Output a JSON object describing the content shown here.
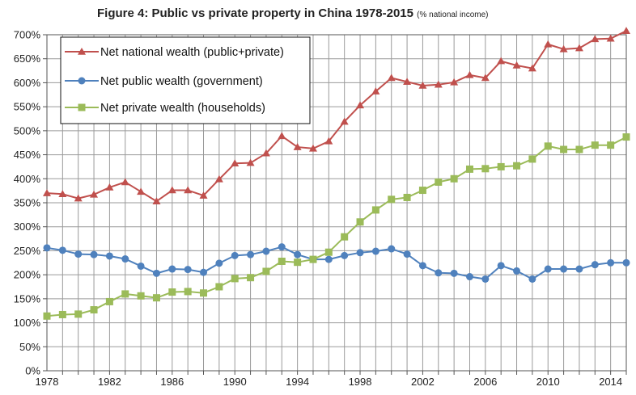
{
  "chart_data": {
    "type": "line",
    "title": "Figure 4: Public vs private property in China 1978-2015",
    "subtitle": "(% national income)",
    "xlabel": "",
    "ylabel": "",
    "xlim": [
      1978,
      2015
    ],
    "ylim": [
      0,
      700
    ],
    "grid": true,
    "legend_position": "top-left",
    "x_ticks": [
      1978,
      1982,
      1986,
      1990,
      1994,
      1998,
      2002,
      2006,
      2010,
      2014
    ],
    "x_tick_labels": [
      "1978",
      "1982",
      "1986",
      "1990",
      "1994",
      "1998",
      "2002",
      "2006",
      "2010",
      "2014"
    ],
    "y_ticks": [
      0,
      50,
      100,
      150,
      200,
      250,
      300,
      350,
      400,
      450,
      500,
      550,
      600,
      650,
      700
    ],
    "y_tick_labels": [
      "0%",
      "50%",
      "100%",
      "150%",
      "200%",
      "250%",
      "300%",
      "350%",
      "400%",
      "450%",
      "500%",
      "550%",
      "600%",
      "650%",
      "700%"
    ],
    "x": [
      1978,
      1979,
      1980,
      1981,
      1982,
      1983,
      1984,
      1985,
      1986,
      1987,
      1988,
      1989,
      1990,
      1991,
      1992,
      1993,
      1994,
      1995,
      1996,
      1997,
      1998,
      1999,
      2000,
      2001,
      2002,
      2003,
      2004,
      2005,
      2006,
      2007,
      2008,
      2009,
      2010,
      2011,
      2012,
      2013,
      2014,
      2015
    ],
    "series": [
      {
        "name": "Net national wealth (public+private)",
        "color": "#C0504D",
        "marker": "triangle",
        "values": [
          370,
          368,
          359,
          367,
          382,
          393,
          373,
          353,
          376,
          376,
          365,
          399,
          432,
          433,
          453,
          489,
          466,
          463,
          478,
          519,
          553,
          582,
          610,
          602,
          594,
          596,
          601,
          616,
          610,
          645,
          636,
          630,
          680,
          670,
          672,
          691,
          692,
          708
        ]
      },
      {
        "name": "Net public wealth (government)",
        "color": "#4F81BD",
        "marker": "circle",
        "values": [
          256,
          251,
          243,
          242,
          239,
          233,
          218,
          203,
          212,
          211,
          205,
          224,
          240,
          242,
          249,
          258,
          242,
          232,
          232,
          240,
          246,
          249,
          254,
          243,
          219,
          204,
          203,
          196,
          191,
          219,
          208,
          191,
          212,
          212,
          212,
          221,
          225,
          225
        ]
      },
      {
        "name": "Net private wealth (households)",
        "color": "#9BBB59",
        "marker": "square",
        "values": [
          114,
          117,
          118,
          127,
          144,
          160,
          156,
          152,
          164,
          165,
          162,
          175,
          192,
          194,
          207,
          228,
          226,
          232,
          247,
          279,
          310,
          335,
          357,
          361,
          376,
          393,
          400,
          420,
          421,
          425,
          427,
          441,
          468,
          461,
          461,
          470,
          470,
          487
        ]
      }
    ]
  }
}
